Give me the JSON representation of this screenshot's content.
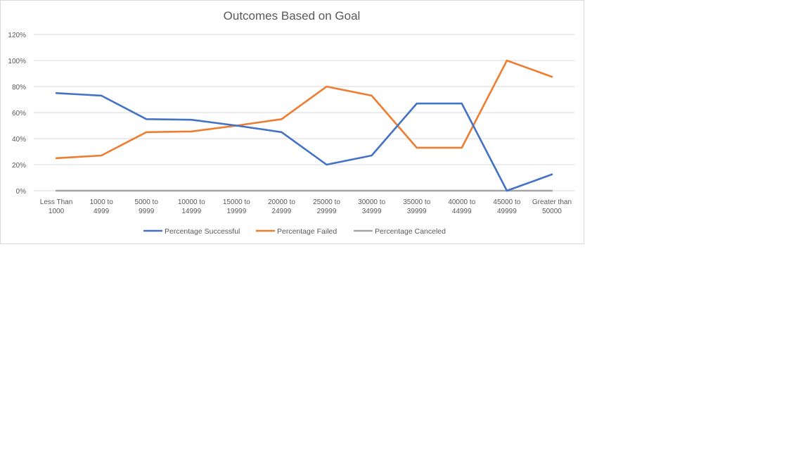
{
  "chart_data": {
    "type": "line",
    "title": "Outcomes Based on Goal",
    "xlabel": "",
    "ylabel": "",
    "categories": [
      [
        "Less Than",
        "1000"
      ],
      [
        "1000 to",
        "4999"
      ],
      [
        "5000 to",
        "9999"
      ],
      [
        "10000 to",
        "14999"
      ],
      [
        "15000 to",
        "19999"
      ],
      [
        "20000 to",
        "24999"
      ],
      [
        "25000 to",
        "29999"
      ],
      [
        "30000 to",
        "34999"
      ],
      [
        "35000 to",
        "39999"
      ],
      [
        "40000 to",
        "44999"
      ],
      [
        "45000 to",
        "49999"
      ],
      [
        "Greater than",
        "50000"
      ]
    ],
    "ylim": [
      0,
      1.2
    ],
    "yticks": [
      0,
      0.2,
      0.4,
      0.6,
      0.8,
      1.0,
      1.2
    ],
    "ytick_labels": [
      "0%",
      "20%",
      "40%",
      "60%",
      "80%",
      "100%",
      "120%"
    ],
    "grid": true,
    "legend_position": "bottom",
    "series": [
      {
        "name": "Percentage Successful",
        "color": "#4472C4",
        "values": [
          0.75,
          0.73,
          0.55,
          0.545,
          0.5,
          0.45,
          0.2,
          0.27,
          0.67,
          0.67,
          0.0,
          0.125
        ]
      },
      {
        "name": "Percentage Failed",
        "color": "#ED7D31",
        "values": [
          0.25,
          0.27,
          0.45,
          0.455,
          0.5,
          0.55,
          0.8,
          0.73,
          0.33,
          0.33,
          1.0,
          0.875
        ]
      },
      {
        "name": "Percentage Canceled",
        "color": "#A5A5A5",
        "values": [
          0,
          0,
          0,
          0,
          0,
          0,
          0,
          0,
          0,
          0,
          0,
          0
        ]
      }
    ]
  }
}
